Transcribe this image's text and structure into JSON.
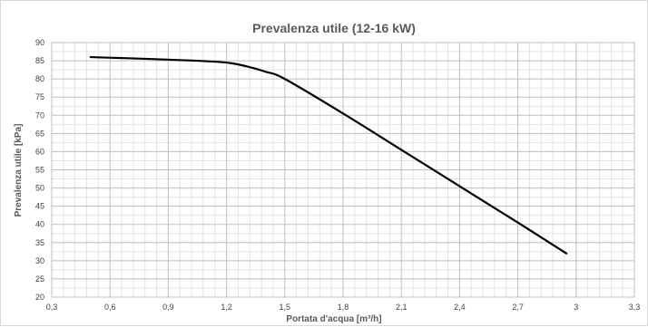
{
  "chart_data": {
    "type": "line",
    "title": "Prevalenza utile (12-16 kW)",
    "xlabel": "Portata d'acqua [m³/h]",
    "ylabel": "Prevalenza utile [kPa]",
    "xlim": [
      0.3,
      3.3
    ],
    "ylim": [
      20,
      90
    ],
    "x_ticks": [
      0.3,
      0.6,
      0.9,
      1.2,
      1.5,
      1.8,
      2.1,
      2.4,
      2.7,
      3.0,
      3.3
    ],
    "x_tick_labels": [
      "0,3",
      "0,6",
      "0,9",
      "1,2",
      "1,5",
      "1,8",
      "2,1",
      "2,4",
      "2,7",
      "3",
      "3,3"
    ],
    "y_ticks": [
      20,
      25,
      30,
      35,
      40,
      45,
      50,
      55,
      60,
      65,
      70,
      75,
      80,
      85,
      90
    ],
    "y_tick_labels": [
      "20",
      "25",
      "30",
      "35",
      "40",
      "45",
      "50",
      "55",
      "60",
      "65",
      "70",
      "75",
      "80",
      "85",
      "90"
    ],
    "grid": true,
    "legend": "none",
    "series": [
      {
        "color": "#000000",
        "x": [
          0.5,
          0.8,
          1.05,
          1.2,
          1.3,
          1.4,
          1.5,
          1.8,
          2.1,
          2.4,
          2.7,
          2.95
        ],
        "y": [
          86,
          85.5,
          85,
          84.5,
          83.5,
          82,
          80,
          70.5,
          60.5,
          50.5,
          40.5,
          32
        ]
      }
    ]
  }
}
